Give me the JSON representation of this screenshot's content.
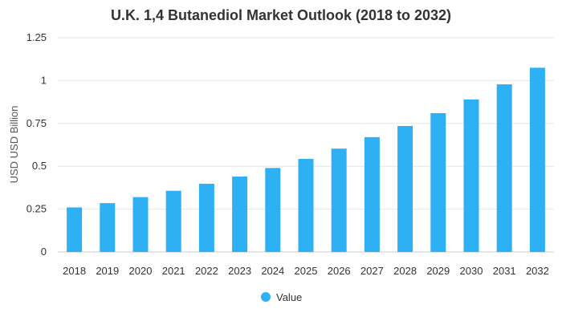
{
  "chart_data": {
    "type": "bar",
    "title": "U.K. 1,4 Butanediol Market Outlook (2018 to 2032)",
    "xlabel": "",
    "ylabel": "USD USD Billion",
    "categories": [
      "2018",
      "2019",
      "2020",
      "2021",
      "2022",
      "2023",
      "2024",
      "2025",
      "2026",
      "2027",
      "2028",
      "2029",
      "2030",
      "2031",
      "2032"
    ],
    "series": [
      {
        "name": "Value",
        "color": "#2eb0f5",
        "values": [
          0.26,
          0.285,
          0.32,
          0.357,
          0.398,
          0.44,
          0.49,
          0.543,
          0.603,
          0.67,
          0.735,
          0.81,
          0.89,
          0.978,
          1.075
        ]
      }
    ],
    "ylim": [
      0,
      1.25
    ],
    "yticks": [
      0,
      0.25,
      0.5,
      0.75,
      1,
      1.25
    ],
    "ytick_labels": [
      "0",
      "0.25",
      "0.5",
      "0.75",
      "1",
      "1.25"
    ],
    "grid": true,
    "legend_position": "bottom-center"
  }
}
